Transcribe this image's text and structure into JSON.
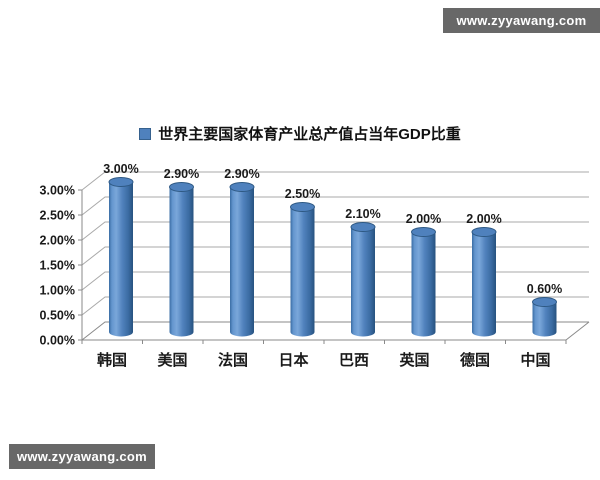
{
  "watermarks": {
    "top": {
      "text": "www.zyyawang.com"
    },
    "bottom": {
      "text": "www.zyyawang.com"
    }
  },
  "legend": {
    "label": "世界主要国家体育产业总产值占当年GDP比重",
    "marker_color": "#4f81bd"
  },
  "chart_data": {
    "type": "bar",
    "style": "3d-cylinder",
    "title": "",
    "xlabel": "",
    "ylabel": "",
    "series_name": "世界主要国家体育产业总产值占当年GDP比重",
    "categories": [
      "韩国",
      "美国",
      "法国",
      "日本",
      "巴西",
      "英国",
      "德国",
      "中国"
    ],
    "values": [
      3.0,
      2.9,
      2.9,
      2.5,
      2.1,
      2.0,
      2.0,
      0.6
    ],
    "data_labels": [
      "3.00%",
      "2.90%",
      "2.90%",
      "2.50%",
      "2.10%",
      "2.00%",
      "2.00%",
      "0.60%"
    ],
    "ylim": [
      0,
      3.0
    ],
    "ytick_step": 0.5,
    "ytick_labels": [
      "0.00%",
      "0.50%",
      "1.00%",
      "1.50%",
      "2.00%",
      "2.50%",
      "3.00%"
    ],
    "grid": true,
    "legend_position": "top-center",
    "bar_color": "#4f81bd",
    "bar_edge_color": "#2e5984",
    "gridline_color": "#a9a9a9",
    "axis_color": "#8a8a8a",
    "text_color": "#1a1a1a",
    "watermark_bg_color": "#686868"
  }
}
